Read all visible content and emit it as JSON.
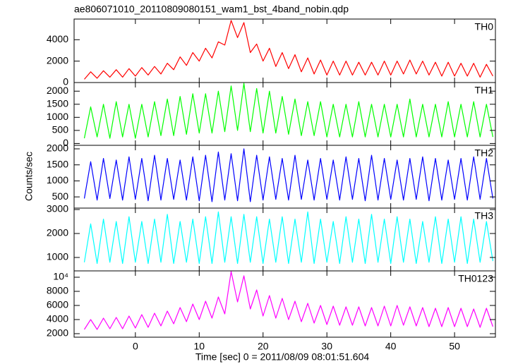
{
  "chart_data": {
    "type": "line",
    "title": "ae806071010_20110809080151_wam1_bst_4band_nobin.qdp",
    "y_label": "Counts/sec",
    "x_label": "Time [sec] 0 = 2011/08/09 08:01:51.604",
    "xlim": [
      -9.6,
      56.4
    ],
    "xticks": [
      0,
      10,
      20,
      30,
      40,
      50
    ],
    "x": [
      -8,
      -7,
      -6,
      -5,
      -4,
      -3,
      -2,
      -1,
      0,
      1,
      2,
      3,
      4,
      5,
      6,
      7,
      8,
      9,
      10,
      11,
      12,
      13,
      14,
      15,
      16,
      17,
      18,
      19,
      20,
      21,
      22,
      23,
      24,
      25,
      26,
      27,
      28,
      29,
      30,
      31,
      32,
      33,
      34,
      35,
      36,
      37,
      38,
      39,
      40,
      41,
      42,
      43,
      44,
      45,
      46,
      47,
      48,
      49,
      50,
      51,
      52,
      53,
      54,
      55,
      56
    ],
    "panels": [
      {
        "ylim": [
          0,
          5930
        ],
        "yticks": [
          0,
          2000,
          4000
        ],
        "series": [
          {
            "name": "TH0",
            "color": "#ff0000",
            "values": [
              300,
              1000,
              400,
              1100,
              500,
              1200,
              500,
              1300,
              600,
              1400,
              700,
              1500,
              800,
              1800,
              1200,
              2400,
              1600,
              2800,
              2000,
              3200,
              2300,
              3800,
              3500,
              5800,
              4200,
              5600,
              2800,
              3600,
              2000,
              3200,
              1500,
              2800,
              1300,
              2600,
              1000,
              2300,
              800,
              2100,
              700,
              2000,
              700,
              2000,
              700,
              1900,
              700,
              1900,
              700,
              2000,
              700,
              2000,
              800,
              2100,
              800,
              2000,
              700,
              1900,
              600,
              1900,
              600,
              1800,
              600,
              1800,
              500,
              1700,
              600
            ]
          }
        ]
      },
      {
        "ylim": [
          -70,
          2330
        ],
        "yticks": [
          0,
          500,
          1000,
          1500,
          2000
        ],
        "series": [
          {
            "name": "TH1",
            "color": "#00ff00",
            "values": [
              200,
              1400,
              250,
              1500,
              200,
              1600,
              250,
              1500,
              200,
              1500,
              250,
              1600,
              300,
              1700,
              300,
              1800,
              350,
              1900,
              400,
              1900,
              400,
              2000,
              450,
              2200,
              500,
              2300,
              450,
              2100,
              400,
              2000,
              400,
              1800,
              350,
              1700,
              300,
              1600,
              300,
              1600,
              250,
              1500,
              250,
              1500,
              250,
              1600,
              250,
              1500,
              250,
              1500,
              250,
              1500,
              250,
              1700,
              250,
              1500,
              250,
              1500,
              250,
              1600,
              250,
              1500,
              250,
              1600,
              250,
              1500,
              250
            ]
          }
        ]
      },
      {
        "ylim": [
          150,
          2110
        ],
        "yticks": [
          500,
          1000,
          1500,
          2000
        ],
        "series": [
          {
            "name": "TH2",
            "color": "#0000ff",
            "values": [
              450,
              1600,
              400,
              1700,
              450,
              1650,
              400,
              1750,
              420,
              1700,
              380,
              1800,
              400,
              1700,
              420,
              1650,
              400,
              1750,
              380,
              1800,
              350,
              1900,
              400,
              1850,
              380,
              2000,
              350,
              1800,
              400,
              1750,
              420,
              1700,
              400,
              1800,
              420,
              1650,
              400,
              1700,
              420,
              1650,
              400,
              1750,
              420,
              1700,
              380,
              1800,
              400,
              1700,
              420,
              1650,
              400,
              1700,
              420,
              1750,
              380,
              1700,
              400,
              1650,
              420,
              1700,
              400,
              1750,
              420,
              1700,
              450
            ]
          }
        ]
      },
      {
        "ylim": [
          440,
          3060
        ],
        "yticks": [
          1000,
          2000,
          3000
        ],
        "series": [
          {
            "name": "TH3",
            "color": "#00ffff",
            "values": [
              800,
              2400,
              750,
              2600,
              800,
              2500,
              750,
              2700,
              800,
              2500,
              750,
              2600,
              800,
              2800,
              750,
              2500,
              800,
              2600,
              750,
              2700,
              750,
              2900,
              800,
              2700,
              750,
              2800,
              800,
              2700,
              750,
              2600,
              800,
              2700,
              750,
              2600,
              800,
              2900,
              750,
              2600,
              800,
              2500,
              750,
              2700,
              800,
              2600,
              750,
              2800,
              800,
              2600,
              750,
              2700,
              800,
              2600,
              750,
              2500,
              800,
              2700,
              750,
              2600,
              800,
              2700,
              750,
              2600,
              800,
              2500,
              850
            ]
          }
        ]
      },
      {
        "ylim": [
          1500,
          10900
        ],
        "yticks": [
          2000,
          4000,
          6000,
          8000,
          {
            "value": 10000,
            "label": "10⁴"
          }
        ],
        "series": [
          {
            "name": "TH0123",
            "color": "#ff00ff",
            "values": [
              2600,
              4000,
              2600,
              4200,
              2700,
              4300,
              2700,
              4500,
              2800,
              4700,
              2900,
              4900,
              3100,
              5200,
              3400,
              5700,
              3700,
              6200,
              4000,
              6600,
              4200,
              7200,
              4800,
              10800,
              6500,
              10200,
              5500,
              8200,
              4500,
              7400,
              4200,
              7000,
              4000,
              6600,
              3700,
              6300,
              3500,
              6000,
              3300,
              5900,
              3200,
              5800,
              3200,
              5800,
              3100,
              5700,
              3100,
              5900,
              3100,
              6000,
              3200,
              5800,
              3100,
              5700,
              3000,
              5600,
              3000,
              5700,
              3000,
              5600,
              3000,
              5500,
              2900,
              5600,
              3000
            ]
          }
        ]
      }
    ]
  }
}
